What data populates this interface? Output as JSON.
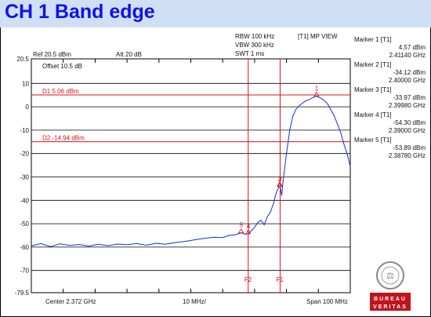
{
  "header": {
    "title": "CH 1 Band edge"
  },
  "settings": {
    "ref": "Ref 20.5 dBm",
    "att": "Att  20 dB",
    "offset": "Offset 10.5 dB",
    "rbw": "RBW 100 kHz",
    "vbw": "VBW 300 kHz",
    "swt": "SWT 1 ms",
    "view": "[T1] MP VIEW",
    "center": "Center 2.372 GHz",
    "div": "10 MHz/",
    "span": "Span 100 MHz"
  },
  "markers_panel": [
    {
      "name": "Marker 1 [T1]",
      "level": "4.57 dBm",
      "freq": "2.41140 GHz"
    },
    {
      "name": "Marker 2 [T1]",
      "level": "-34.12 dBm",
      "freq": "2.40000 GHz"
    },
    {
      "name": "Marker 3 [T1]",
      "level": "-33.97 dBm",
      "freq": "2.39980 GHz"
    },
    {
      "name": "Marker 4 [T1]",
      "level": "-54.30 dBm",
      "freq": "2.39000 GHz"
    },
    {
      "name": "Marker 5 [T1]",
      "level": "-53.89 dBm",
      "freq": "2.38780 GHz"
    }
  ],
  "logo": {
    "text1": "BUREAU",
    "text2": "VERITAS",
    "color": "#c0141c"
  },
  "chart_data": {
    "type": "line",
    "title": "CH 1 Band edge",
    "x_unit": "GHz",
    "xlim": [
      2.322,
      2.422
    ],
    "ylim": [
      -79.5,
      20.5
    ],
    "y_ticks": [
      20.5,
      10,
      0,
      -10,
      -20,
      -30,
      -40,
      -50,
      -60,
      -70,
      -79.5
    ],
    "y_tick_labels": [
      "20.5",
      "10",
      "0",
      "-10",
      "-20",
      "-30",
      "-40",
      "-50",
      "-60",
      "-70",
      "-79.5"
    ],
    "display_lines": [
      {
        "label": "D1 5.06 dBm",
        "value": 5.06
      },
      {
        "label": "D2 -14.94 dBm",
        "value": -14.94
      }
    ],
    "freq_lines": [
      {
        "label": "F2",
        "x": 2.39
      },
      {
        "label": "F1",
        "x": 2.4
      }
    ],
    "markers": [
      {
        "label": "1",
        "x": 2.4114,
        "y": 4.57
      },
      {
        "label": "2",
        "x": 2.4,
        "y": -34.12
      },
      {
        "label": "3",
        "x": 2.3998,
        "y": -33.97
      },
      {
        "label": "4",
        "x": 2.39,
        "y": -54.3
      },
      {
        "label": "5",
        "x": 2.3878,
        "y": -53.89
      }
    ],
    "series": [
      {
        "color": "#1030d0",
        "x": [
          2.322,
          2.325,
          2.328,
          2.331,
          2.334,
          2.337,
          2.34,
          2.343,
          2.346,
          2.349,
          2.352,
          2.355,
          2.358,
          2.361,
          2.364,
          2.367,
          2.37,
          2.373,
          2.376,
          2.379,
          2.382,
          2.384,
          2.386,
          2.3878,
          2.389,
          2.39,
          2.391,
          2.392,
          2.393,
          2.394,
          2.395,
          2.396,
          2.397,
          2.398,
          2.3985,
          2.399,
          2.3998,
          2.4,
          2.4005,
          2.401,
          2.402,
          2.403,
          2.404,
          2.405,
          2.406,
          2.407,
          2.408,
          2.409,
          2.41,
          2.4114,
          2.413,
          2.414,
          2.415,
          2.416,
          2.417,
          2.418,
          2.419,
          2.42,
          2.421,
          2.422
        ],
        "y": [
          -59.5,
          -58.5,
          -59.8,
          -58.6,
          -59.3,
          -58.9,
          -59.6,
          -58.8,
          -59.4,
          -58.7,
          -59.0,
          -58.5,
          -59.2,
          -58.4,
          -58.8,
          -58.1,
          -57.6,
          -56.9,
          -56.3,
          -55.8,
          -55.9,
          -55.0,
          -54.7,
          -53.9,
          -54.5,
          -54.3,
          -53.0,
          -51.5,
          -49.5,
          -48.5,
          -50.5,
          -47.0,
          -45.0,
          -41.0,
          -38.0,
          -36.0,
          -34.0,
          -34.1,
          -38.0,
          -31.0,
          -20.0,
          -10.0,
          -4.0,
          -1.0,
          0.5,
          1.5,
          2.5,
          3.0,
          3.8,
          4.57,
          3.5,
          2.5,
          1.0,
          -1.5,
          -4.0,
          -7.5,
          -11.0,
          -16.0,
          -20.0,
          -25.5
        ]
      }
    ]
  }
}
